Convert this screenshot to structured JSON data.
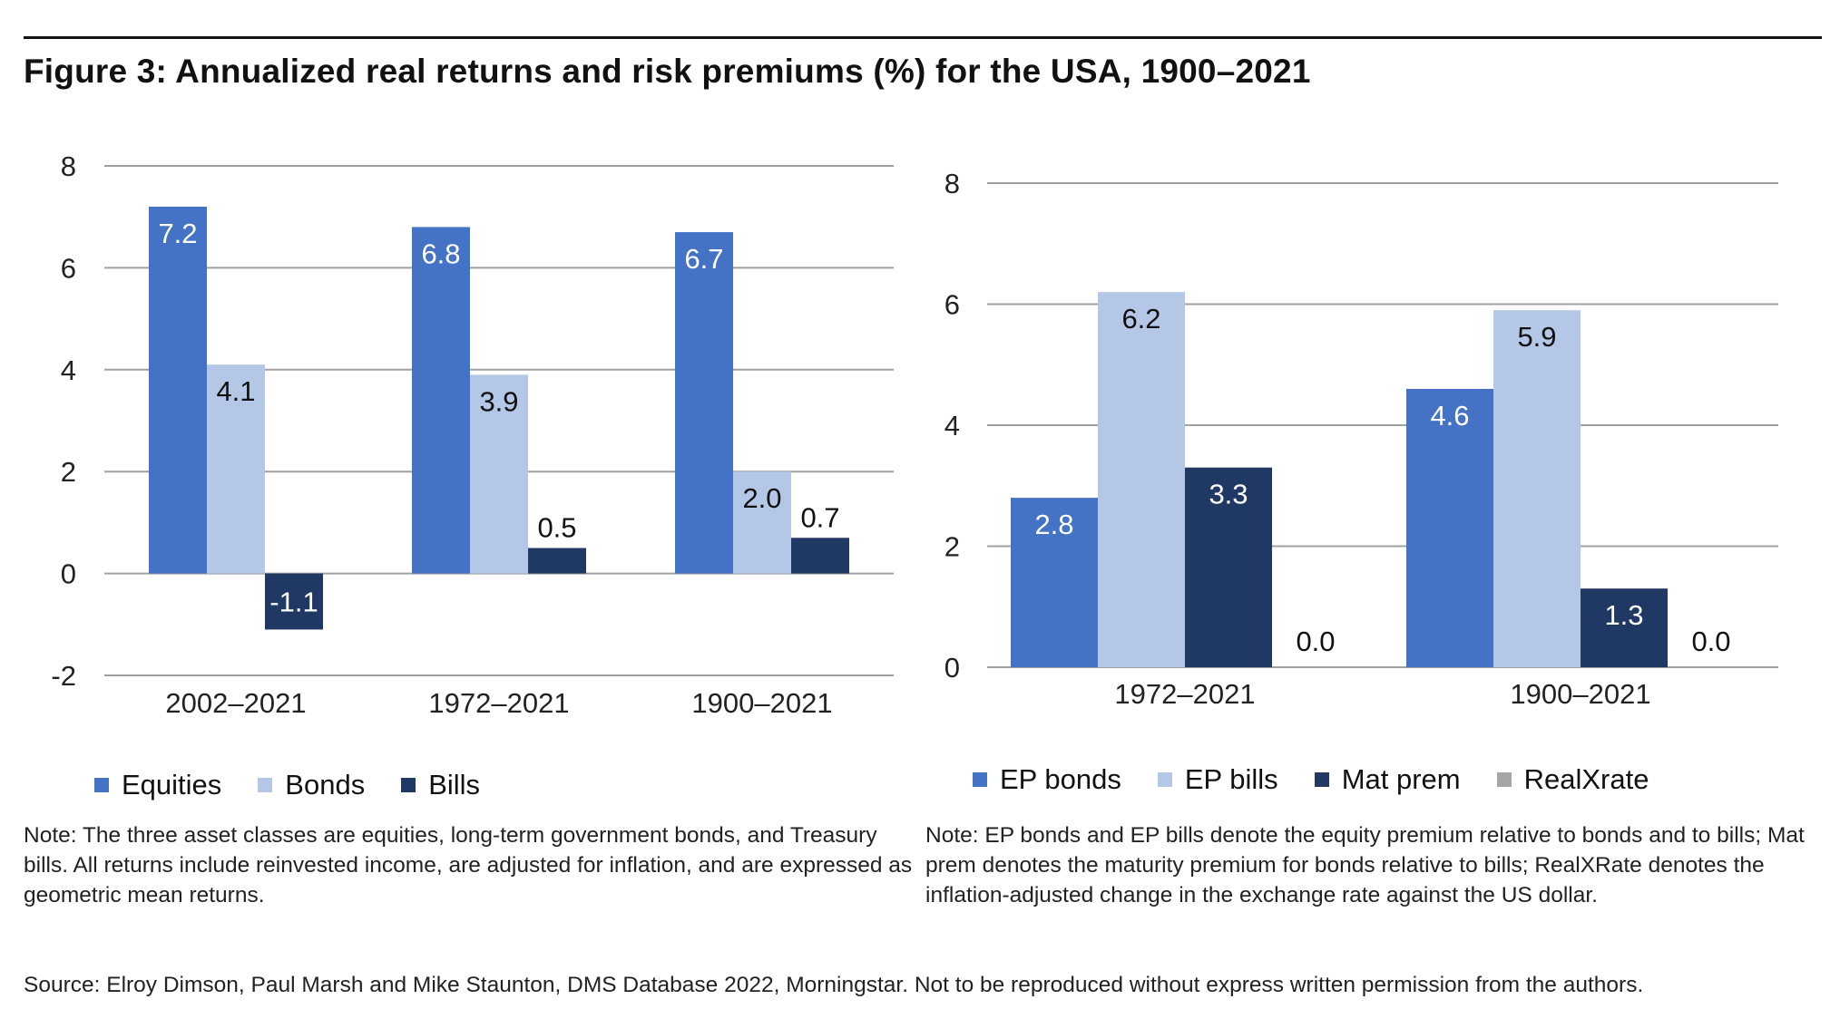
{
  "figure": {
    "title": "Figure 3: Annualized real returns and risk premiums (%) for the USA, 1900–2021"
  },
  "colors": {
    "dark_blue": "#4472C4",
    "light_blue": "#B4C7E7",
    "navy": "#203864",
    "gray": "#A6A6A6",
    "grid": "#A0A0A0"
  },
  "chart_data": [
    {
      "type": "bar",
      "categories": [
        "2002–2021",
        "1972–2021",
        "1900–2021"
      ],
      "series": [
        {
          "name": "Equities",
          "values": [
            7.2,
            6.8,
            6.7
          ],
          "color": "#4472C4",
          "label_color": "#ffffff"
        },
        {
          "name": "Bonds",
          "values": [
            4.1,
            3.9,
            2.0
          ],
          "color": "#B4C7E7",
          "label_color": "#111111"
        },
        {
          "name": "Bills",
          "values": [
            -1.1,
            0.5,
            0.7
          ],
          "color": "#203864",
          "label_color": "#ffffff"
        }
      ],
      "data_labels": [
        [
          "7.2",
          "4.1",
          "-1.1"
        ],
        [
          "6.8",
          "3.9",
          "0.5"
        ],
        [
          "6.7",
          "2.0",
          "0.7"
        ]
      ],
      "ylim": [
        -2,
        8
      ],
      "yticks": [
        "-2",
        "0",
        "2",
        "4",
        "6",
        "8"
      ],
      "grid": true,
      "legend_position": "bottom-left"
    },
    {
      "type": "bar",
      "categories": [
        "1972–2021",
        "1900–2021"
      ],
      "series": [
        {
          "name": "EP bonds",
          "values": [
            2.8,
            4.6
          ],
          "color": "#4472C4",
          "label_color": "#ffffff"
        },
        {
          "name": "EP bills",
          "values": [
            6.2,
            5.9
          ],
          "color": "#B4C7E7",
          "label_color": "#111111"
        },
        {
          "name": "Mat prem",
          "values": [
            3.3,
            1.3
          ],
          "color": "#203864",
          "label_color": "#ffffff"
        },
        {
          "name": "RealXrate",
          "values": [
            0.0,
            0.0
          ],
          "color": "#A6A6A6",
          "label_color": "#111111"
        }
      ],
      "data_labels": [
        [
          "2.8",
          "6.2",
          "3.3",
          "0.0"
        ],
        [
          "4.6",
          "5.9",
          "1.3",
          "0.0"
        ]
      ],
      "ylim": [
        0,
        8
      ],
      "yticks": [
        "0",
        "2",
        "4",
        "6",
        "8"
      ],
      "grid": true,
      "legend_position": "bottom-left"
    }
  ],
  "notes": {
    "left": "Note:  The three asset classes are equities, long-term government bonds, and Treasury bills. All returns include reinvested income, are adjusted for inflation, and are expressed as geometric mean returns.",
    "right": "Note: EP bonds and EP bills denote the equity premium relative to bonds and to bills; Mat prem denotes the maturity premium for bonds relative to bills; RealXRate denotes the inflation-adjusted change in the exchange rate against the US dollar."
  },
  "source": "Source: Elroy Dimson, Paul Marsh and Mike Staunton, DMS Database 2022, Morningstar. Not to be reproduced without express written permission from the authors."
}
